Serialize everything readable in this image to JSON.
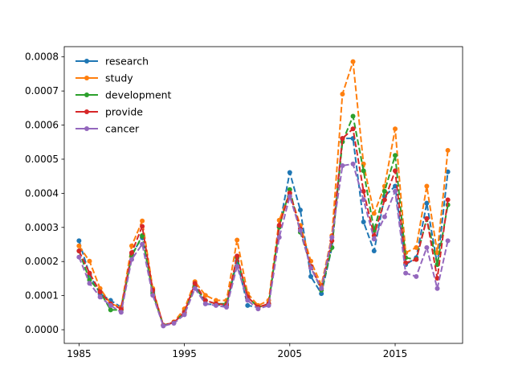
{
  "chart_data": {
    "type": "line",
    "title": "",
    "xlabel": "",
    "ylabel": "",
    "xlim": [
      1983.6,
      2021.4
    ],
    "ylim": [
      -4e-05,
      0.00083
    ],
    "xticks": [
      1985,
      1995,
      2005,
      2015
    ],
    "xtick_labels": [
      "1985",
      "1995",
      "2005",
      "2015"
    ],
    "yticks": [
      0,
      0.0001,
      0.0002,
      0.0003,
      0.0004,
      0.0005,
      0.0006,
      0.0007,
      0.0008
    ],
    "ytick_labels": [
      "0.0000",
      "0.0001",
      "0.0002",
      "0.0003",
      "0.0004",
      "0.0005",
      "0.0006",
      "0.0007",
      "0.0008"
    ],
    "grid": false,
    "legend_position": "top-left",
    "x": [
      1985,
      1986,
      1987,
      1988,
      1989,
      1990,
      1991,
      1992,
      1993,
      1994,
      1995,
      1996,
      1997,
      1998,
      1999,
      2000,
      2001,
      2002,
      2003,
      2004,
      2005,
      2006,
      2007,
      2008,
      2009,
      2010,
      2011,
      2012,
      2013,
      2014,
      2015,
      2016,
      2017,
      2018,
      2019,
      2020
    ],
    "series": [
      {
        "name": "research",
        "color": "#1f77b4",
        "values": [
          0.000261,
          0.000161,
          0.000106,
          8.6e-05,
          6.6e-05,
          0.000221,
          0.000271,
          0.000111,
          1.3e-05,
          2.1e-05,
          4.6e-05,
          0.000131,
          7.6e-05,
          7.3e-05,
          7.1e-05,
          0.000201,
          7.1e-05,
          6.6e-05,
          7.6e-05,
          0.000301,
          0.000461,
          0.000351,
          0.000156,
          0.000106,
          0.000241,
          0.000561,
          0.000561,
          0.000316,
          0.000231,
          0.000391,
          0.000421,
          0.000191,
          0.000211,
          0.000371,
          0.000191,
          0.000463
        ]
      },
      {
        "name": "study",
        "color": "#ff7f0e",
        "values": [
          0.000246,
          0.000201,
          0.000121,
          7.6e-05,
          6.6e-05,
          0.000246,
          0.000319,
          0.000121,
          1.3e-05,
          2.3e-05,
          6.1e-05,
          0.000141,
          0.000101,
          8.6e-05,
          8.6e-05,
          0.000263,
          0.000106,
          7.1e-05,
          8.6e-05,
          0.000321,
          0.000401,
          0.000306,
          0.000201,
          0.000131,
          0.000276,
          0.000691,
          0.000786,
          0.000486,
          0.000341,
          0.000421,
          0.000589,
          0.000226,
          0.000241,
          0.000421,
          0.000226,
          0.000526
        ]
      },
      {
        "name": "development",
        "color": "#2ca02c",
        "values": [
          0.000231,
          0.000146,
          0.000111,
          5.8e-05,
          5.8e-05,
          0.000216,
          0.000276,
          0.000106,
          1.3e-05,
          2.1e-05,
          5.1e-05,
          0.000126,
          8.6e-05,
          7.6e-05,
          7.6e-05,
          0.000211,
          9.6e-05,
          6.6e-05,
          7.6e-05,
          0.000301,
          0.000411,
          0.000286,
          0.000186,
          0.000116,
          0.000241,
          0.000551,
          0.000626,
          0.000466,
          0.000291,
          0.000406,
          0.000511,
          0.000211,
          0.000206,
          0.000326,
          0.000191,
          0.000366
        ]
      },
      {
        "name": "provide",
        "color": "#d62728",
        "values": [
          0.000231,
          0.000166,
          0.000111,
          7.6e-05,
          6.1e-05,
          0.000226,
          0.000303,
          0.000116,
          1.3e-05,
          2.1e-05,
          5.1e-05,
          0.000136,
          8.6e-05,
          7.6e-05,
          7.3e-05,
          0.000216,
          9.6e-05,
          6.6e-05,
          7.6e-05,
          0.000306,
          0.000401,
          0.000296,
          0.000186,
          0.000121,
          0.000261,
          0.000561,
          0.000589,
          0.000406,
          0.000276,
          0.000381,
          0.000466,
          0.000196,
          0.000206,
          0.000326,
          0.000151,
          0.000381
        ]
      },
      {
        "name": "cancer",
        "color": "#9467bd",
        "values": [
          0.000213,
          0.000136,
          9.6e-05,
          7.1e-05,
          5.1e-05,
          0.000206,
          0.000251,
          0.000101,
          1.1e-05,
          1.9e-05,
          4.4e-05,
          0.000121,
          7.6e-05,
          7.1e-05,
          6.6e-05,
          0.000186,
          8.6e-05,
          6.1e-05,
          7.1e-05,
          0.000271,
          0.000391,
          0.000291,
          0.000181,
          0.000121,
          0.000271,
          0.000481,
          0.000486,
          0.000381,
          0.000266,
          0.000331,
          0.000406,
          0.000166,
          0.000156,
          0.000241,
          0.000121,
          0.000261
        ]
      }
    ]
  }
}
